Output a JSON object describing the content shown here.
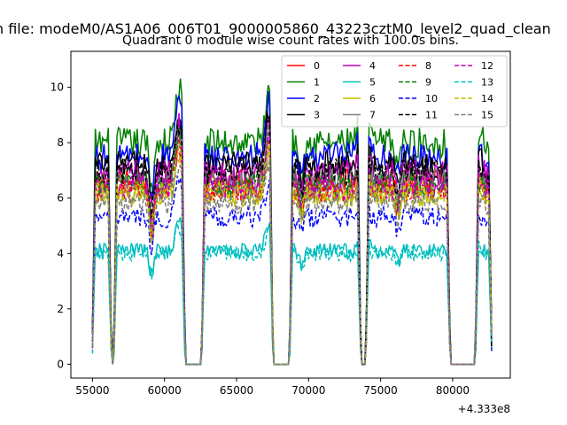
{
  "chart_data": {
    "type": "line",
    "suptitle": "n file: modeM0/AS1A06_006T01_9000005860_43223cztM0_level2_quad_clean",
    "title": "Quadrant 0 module wise count rates with 100.0s bins.",
    "xlabel": "",
    "ylabel": "",
    "x_offset_label": "+4.333e8",
    "xlim": [
      53500,
      84000
    ],
    "ylim": [
      -0.5,
      11.3
    ],
    "xticks": [
      "55000",
      "60000",
      "65000",
      "70000",
      "75000",
      "80000"
    ],
    "xtick_values": [
      55000,
      60000,
      65000,
      70000,
      75000,
      80000
    ],
    "yticks": [
      "0",
      "2",
      "4",
      "6",
      "8",
      "10"
    ],
    "ytick_values": [
      0,
      2,
      4,
      6,
      8,
      10
    ],
    "grid": false,
    "legend_location": "top-right",
    "legend_columns": 4,
    "good_time_intervals": [
      [
        55000,
        56300
      ],
      [
        56500,
        61400
      ],
      [
        62600,
        67500
      ],
      [
        68700,
        73600
      ],
      [
        74000,
        79800
      ],
      [
        81600,
        82700
      ]
    ],
    "series": [
      {
        "name": "0",
        "color": "#ff0000",
        "dash": "solid",
        "level": 6.6
      },
      {
        "name": "1",
        "color": "#008000",
        "dash": "solid",
        "level": 8.0
      },
      {
        "name": "2",
        "color": "#0000ff",
        "dash": "solid",
        "level": 7.5
      },
      {
        "name": "3",
        "color": "#000000",
        "dash": "solid",
        "level": 7.2
      },
      {
        "name": "4",
        "color": "#bf00bf",
        "dash": "solid",
        "level": 6.9
      },
      {
        "name": "5",
        "color": "#00bfbf",
        "dash": "solid",
        "level": 4.1
      },
      {
        "name": "6",
        "color": "#bfbf00",
        "dash": "solid",
        "level": 6.1
      },
      {
        "name": "7",
        "color": "#808080",
        "dash": "solid",
        "level": 6.6
      },
      {
        "name": "8",
        "color": "#ff0000",
        "dash": "dashed",
        "level": 6.3
      },
      {
        "name": "9",
        "color": "#008000",
        "dash": "dashed",
        "level": 6.5
      },
      {
        "name": "10",
        "color": "#0000ff",
        "dash": "dashed",
        "level": 5.3
      },
      {
        "name": "11",
        "color": "#000000",
        "dash": "dashed",
        "level": 7.0
      },
      {
        "name": "12",
        "color": "#bf00bf",
        "dash": "dashed",
        "level": 6.4
      },
      {
        "name": "13",
        "color": "#00bfbf",
        "dash": "dashed",
        "level": 4.0
      },
      {
        "name": "14",
        "color": "#bfbf00",
        "dash": "dashed",
        "level": 6.2
      },
      {
        "name": "15",
        "color": "#808080",
        "dash": "dashed",
        "level": 5.8
      }
    ]
  }
}
